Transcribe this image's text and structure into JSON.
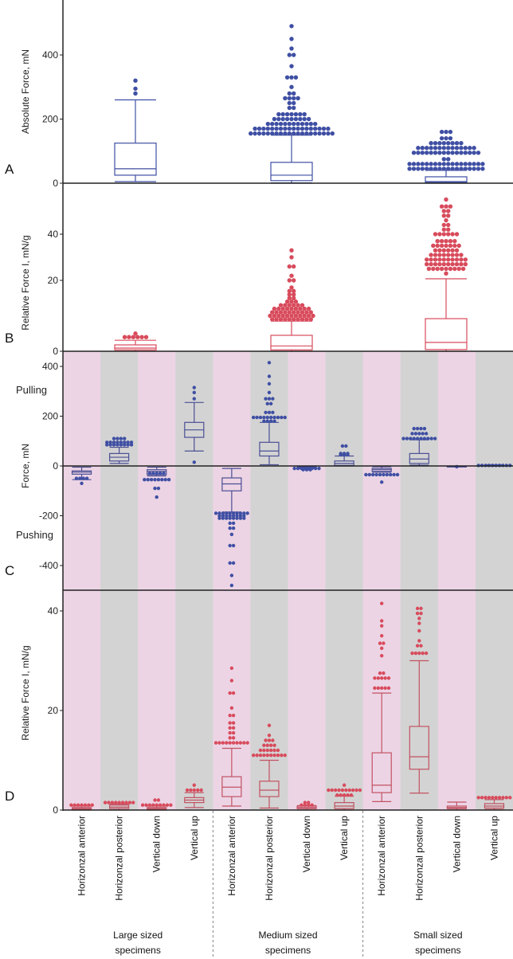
{
  "colors": {
    "blue": "#3f4fa3",
    "blue_box": "#4b4f94",
    "red": "#d84b5c",
    "red_dark": "#c25262",
    "pink_band": "#ecd4e5",
    "gray_band": "#d3d3d3"
  },
  "annotations": {
    "pulling": "Pulling",
    "pushing": "Pushing"
  },
  "x_categories": [
    "Horizonzal anterior",
    "Horizonzal posterior",
    "Vertical down",
    "Vertical up",
    "Horizonzal anterior",
    "Horizonzal posterior",
    "Vertical down",
    "Vertical up",
    "Horizonzal anterior",
    "Horizonzal posterior",
    "Vertical down",
    "Vertical up"
  ],
  "groups": [
    {
      "line1": "Large sized",
      "line2": "specimens"
    },
    {
      "line1": "Medium sized",
      "line2": "specimens"
    },
    {
      "line1": "Small sized",
      "line2": "specimens"
    }
  ],
  "chart_data": [
    {
      "panel": "A",
      "type": "box",
      "ylabel": "Absolute Force, mN",
      "yticks": [
        0,
        200,
        400
      ],
      "ylim": [
        0,
        560
      ],
      "categories": [
        "Large sized specimens",
        "Medium sized specimens",
        "Small sized specimens"
      ],
      "boxes": [
        {
          "min": 5,
          "q1": 25,
          "median": 45,
          "q3": 125,
          "max": 260,
          "outliers": [
            [
              280,
              1
            ],
            [
              295,
              1
            ],
            [
              320,
              1
            ]
          ]
        },
        {
          "min": 1,
          "q1": 8,
          "median": 25,
          "q3": 65,
          "max": 150,
          "outliers": [
            [
              155,
              20
            ],
            [
              170,
              18
            ],
            [
              185,
              12
            ],
            [
              200,
              9
            ],
            [
              215,
              7
            ],
            [
              235,
              2
            ],
            [
              250,
              2
            ],
            [
              265,
              4
            ],
            [
              280,
              2
            ],
            [
              300,
              1
            ],
            [
              330,
              3
            ],
            [
              365,
              1
            ],
            [
              400,
              2
            ],
            [
              420,
              1
            ],
            [
              450,
              1
            ],
            [
              490,
              1
            ]
          ]
        },
        {
          "min": 1,
          "q1": 2,
          "median": 5,
          "q3": 20,
          "max": 40,
          "outliers": [
            [
              45,
              18
            ],
            [
              60,
              18
            ],
            [
              75,
              2
            ],
            [
              95,
              16
            ],
            [
              110,
              14
            ],
            [
              125,
              8
            ],
            [
              140,
              3
            ],
            [
              160,
              3
            ]
          ]
        }
      ]
    },
    {
      "panel": "B",
      "type": "box",
      "ylabel": "Relative Force I, mN/g",
      "yticks": [
        0,
        20,
        40
      ],
      "ylim": [
        0,
        56
      ],
      "categories": [
        "Large sized specimens",
        "Medium sized specimens",
        "Small sized specimens"
      ],
      "boxes": [
        {
          "min": 0,
          "q1": 0.4,
          "median": 0.9,
          "q3": 1.8,
          "max": 3.1,
          "outliers": [
            [
              4,
              6
            ],
            [
              5,
              1
            ]
          ]
        },
        {
          "min": 0,
          "q1": 0.4,
          "median": 1.5,
          "q3": 4.5,
          "max": 8.5,
          "outliers": [
            [
              9,
              10
            ],
            [
              10,
              11
            ],
            [
              11,
              10
            ],
            [
              12,
              9
            ],
            [
              13,
              6
            ],
            [
              14,
              3
            ],
            [
              15,
              2
            ],
            [
              16,
              2
            ],
            [
              17,
              2
            ],
            [
              18,
              1
            ],
            [
              20,
              2
            ],
            [
              22,
              1
            ],
            [
              26,
              2
            ],
            [
              30,
              1
            ],
            [
              33,
              1
            ]
          ]
        },
        {
          "min": 0,
          "q1": 0.5,
          "median": 2.5,
          "q3": 9.2,
          "max": 20.7,
          "outliers": [
            [
              23,
              1
            ],
            [
              25,
              9
            ],
            [
              27,
              10
            ],
            [
              29,
              10
            ],
            [
              31,
              8
            ],
            [
              33,
              6
            ],
            [
              35,
              7
            ],
            [
              37,
              5
            ],
            [
              40,
              6
            ],
            [
              42,
              2
            ],
            [
              44,
              2
            ],
            [
              46,
              1
            ],
            [
              48,
              2
            ],
            [
              50,
              2
            ],
            [
              52,
              3
            ],
            [
              55,
              1
            ]
          ]
        }
      ]
    },
    {
      "panel": "C",
      "type": "box",
      "ylabel": "Force, mN",
      "yticks": [
        -400,
        -200,
        0,
        200,
        400
      ],
      "ylim": [
        -500,
        430
      ],
      "boxes": [
        {
          "min": -55,
          "q1": -33,
          "median": -25,
          "q3": -20,
          "max": -5,
          "outliers": [
            [
              -50,
              4
            ],
            [
              -70,
              1
            ]
          ]
        },
        {
          "min": 10,
          "q1": 20,
          "median": 35,
          "q3": 50,
          "max": 75,
          "outliers": [
            [
              85,
              8
            ],
            [
              95,
              8
            ],
            [
              110,
              4
            ]
          ]
        },
        {
          "min": -40,
          "q1": -35,
          "median": -22,
          "q3": -15,
          "max": -5,
          "outliers": [
            [
              -30,
              5
            ],
            [
              -55,
              8
            ],
            [
              -90,
              2
            ],
            [
              -125,
              1
            ]
          ]
        },
        {
          "min": 60,
          "q1": 115,
          "median": 145,
          "q3": 175,
          "max": 255,
          "outliers": [
            [
              15,
              1
            ],
            [
              270,
              1
            ],
            [
              295,
              1
            ],
            [
              315,
              1
            ]
          ]
        },
        {
          "min": -185,
          "q1": -100,
          "median": -72,
          "q3": -48,
          "max": -10,
          "outliers": [
            [
              -190,
              10
            ],
            [
              -200,
              8
            ],
            [
              -210,
              8
            ],
            [
              -230,
              2
            ],
            [
              -250,
              2
            ],
            [
              -275,
              1
            ],
            [
              -320,
              2
            ],
            [
              -390,
              2
            ],
            [
              -440,
              1
            ],
            [
              -480,
              1
            ]
          ]
        },
        {
          "min": 5,
          "q1": 40,
          "median": 60,
          "q3": 95,
          "max": 175,
          "outliers": [
            [
              180,
              4
            ],
            [
              195,
              10
            ],
            [
              215,
              3
            ],
            [
              250,
              2
            ],
            [
              270,
              3
            ],
            [
              295,
              1
            ],
            [
              330,
              1
            ],
            [
              360,
              1
            ],
            [
              415,
              1
            ]
          ]
        },
        {
          "min": -10,
          "q1": -8,
          "median": -5,
          "q3": -3,
          "max": -2,
          "outliers": [
            [
              -10,
              8
            ],
            [
              -15,
              3
            ]
          ]
        },
        {
          "min": 0,
          "q1": 2,
          "median": 10,
          "q3": 20,
          "max": 40,
          "outliers": [
            [
              45,
              3
            ],
            [
              50,
              3
            ],
            [
              80,
              2
            ]
          ]
        },
        {
          "min": -25,
          "q1": -22,
          "median": -15,
          "q3": -10,
          "max": -3,
          "outliers": [
            [
              -35,
              10
            ],
            [
              -65,
              1
            ]
          ]
        },
        {
          "min": 3,
          "q1": 10,
          "median": 28,
          "q3": 50,
          "max": 105,
          "outliers": [
            [
              110,
              10
            ],
            [
              130,
              5
            ],
            [
              150,
              4
            ]
          ]
        },
        {
          "min": -3,
          "q1": -2,
          "median": -2,
          "q3": -1,
          "max": -1,
          "outliers": [
            [
              -3,
              1
            ]
          ]
        },
        {
          "min": 0,
          "q1": 0,
          "median": 2,
          "q3": 4,
          "max": 5,
          "outliers": [
            [
              2,
              10
            ]
          ]
        }
      ]
    },
    {
      "panel": "D",
      "type": "box",
      "ylabel": "Relative Force I, mN/g",
      "yticks": [
        0,
        20,
        40
      ],
      "ylim": [
        0,
        44
      ],
      "boxes": [
        {
          "min": 0,
          "q1": 0.1,
          "median": 0.3,
          "q3": 0.5,
          "max": 0.8,
          "outliers": [
            [
              1,
              7
            ]
          ]
        },
        {
          "min": 0,
          "q1": 0.3,
          "median": 0.6,
          "q3": 1,
          "max": 1.2,
          "outliers": [
            [
              1.5,
              9
            ]
          ]
        },
        {
          "min": 0,
          "q1": 0.1,
          "median": 0.3,
          "q3": 0.5,
          "max": 0.8,
          "outliers": [
            [
              1,
              9
            ],
            [
              2,
              2
            ]
          ]
        },
        {
          "min": 0.5,
          "q1": 1.5,
          "median": 2,
          "q3": 2.5,
          "max": 3.5,
          "outliers": [
            [
              4,
              5
            ],
            [
              5,
              1
            ]
          ]
        },
        {
          "min": 0.8,
          "q1": 2.7,
          "median": 4.6,
          "q3": 6.7,
          "max": 12.4,
          "outliers": [
            [
              13.5,
              10
            ],
            [
              14.5,
              2
            ],
            [
              15.5,
              2
            ],
            [
              16.5,
              2
            ],
            [
              17.5,
              2
            ],
            [
              19,
              2
            ],
            [
              20.5,
              1
            ],
            [
              23.5,
              2
            ],
            [
              26,
              1
            ],
            [
              28.5,
              1
            ]
          ]
        },
        {
          "min": 0.4,
          "q1": 2.7,
          "median": 4,
          "q3": 5.8,
          "max": 10,
          "outliers": [
            [
              11,
              10
            ],
            [
              12,
              6
            ],
            [
              13,
              4
            ],
            [
              14,
              3
            ],
            [
              15,
              1
            ],
            [
              17,
              1
            ]
          ]
        },
        {
          "min": 0,
          "q1": 0.3,
          "median": 0.5,
          "q3": 0.8,
          "max": 0.9,
          "outliers": [
            [
              1,
              4
            ],
            [
              1.5,
              2
            ]
          ]
        },
        {
          "min": 0,
          "q1": 0.3,
          "median": 0.8,
          "q3": 1.5,
          "max": 2.8,
          "outliers": [
            [
              3,
              5
            ],
            [
              4,
              10
            ],
            [
              5,
              1
            ]
          ]
        },
        {
          "min": 1.7,
          "q1": 3.5,
          "median": 5,
          "q3": 11.5,
          "max": 23.5,
          "outliers": [
            [
              24.5,
              5
            ],
            [
              26.5,
              5
            ],
            [
              27.5,
              2
            ],
            [
              31,
              1
            ],
            [
              32.5,
              1
            ],
            [
              33.5,
              2
            ],
            [
              35,
              1
            ],
            [
              37,
              1
            ],
            [
              38,
              1
            ],
            [
              41.5,
              1
            ]
          ]
        },
        {
          "min": 3.4,
          "q1": 8.2,
          "median": 10.7,
          "q3": 16.8,
          "max": 30,
          "outliers": [
            [
              31.5,
              5
            ],
            [
              33,
              2
            ],
            [
              34,
              1
            ],
            [
              36,
              1
            ],
            [
              37.5,
              1
            ],
            [
              38.5,
              1
            ],
            [
              39.5,
              2
            ],
            [
              40.5,
              2
            ]
          ]
        },
        {
          "min": 0,
          "q1": 0.3,
          "median": 0.5,
          "q3": 0.8,
          "max": 1.6,
          "outliers": []
        },
        {
          "min": 0.1,
          "q1": 0.4,
          "median": 0.8,
          "q3": 1.3,
          "max": 2.1,
          "outliers": [
            [
              2.5,
              10
            ]
          ]
        }
      ]
    }
  ]
}
